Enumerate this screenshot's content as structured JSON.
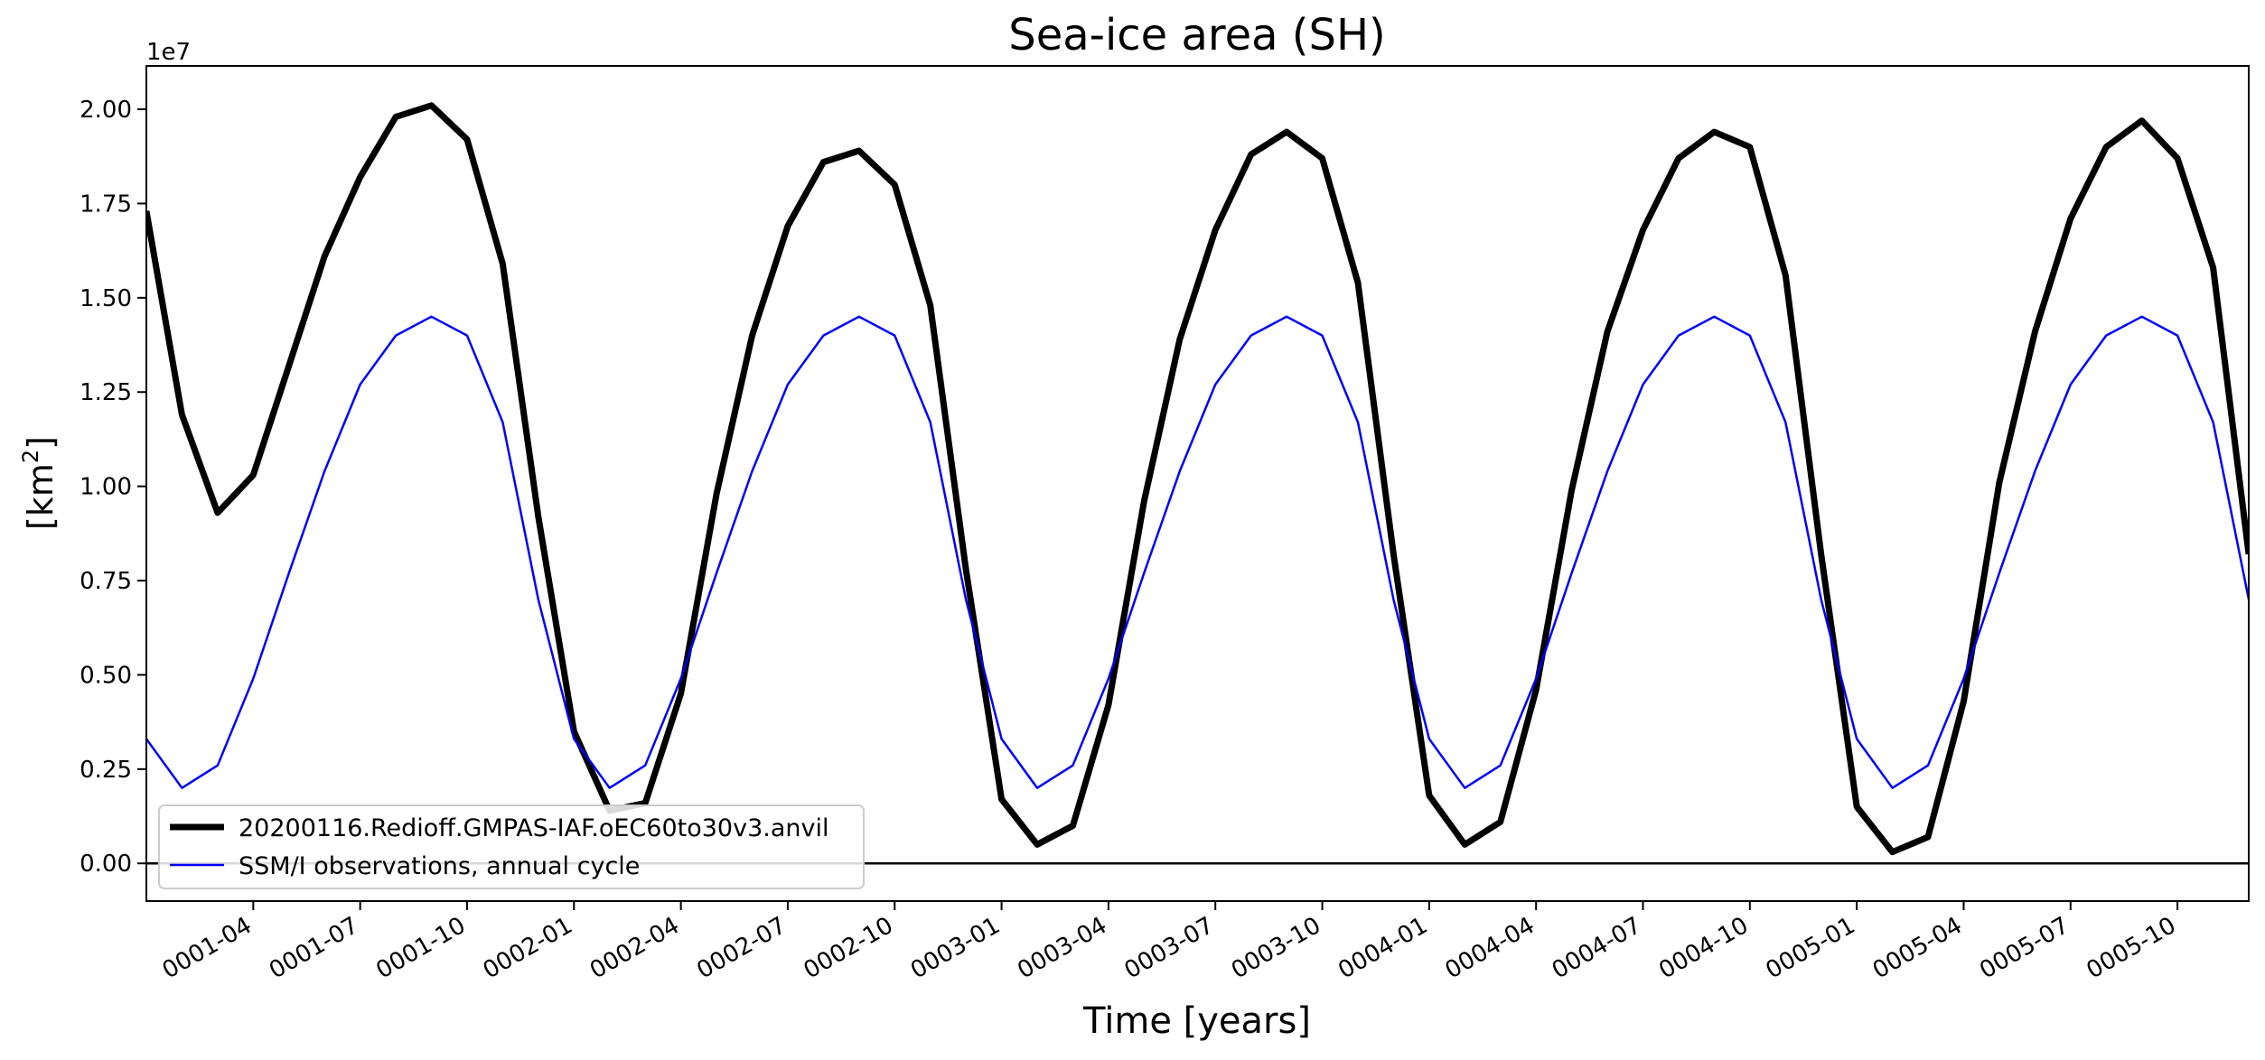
{
  "chart_data": {
    "type": "line",
    "title": "Sea-ice area (SH)",
    "xlabel": "Time [years]",
    "ylabel_base": "[km",
    "ylabel_sup": "2",
    "ylabel_close": "]",
    "y_offset_label": "1e7",
    "y_scale": 10000000,
    "x_unit": "month",
    "x_start": "0001-01",
    "xlim": [
      0,
      59
    ],
    "ylim": [
      -0.1,
      2.115
    ],
    "x_ticks": [
      {
        "label": "0001-04",
        "x": 3
      },
      {
        "label": "0001-07",
        "x": 6
      },
      {
        "label": "0001-10",
        "x": 9
      },
      {
        "label": "0002-01",
        "x": 12
      },
      {
        "label": "0002-04",
        "x": 15
      },
      {
        "label": "0002-07",
        "x": 18
      },
      {
        "label": "0002-10",
        "x": 21
      },
      {
        "label": "0003-01",
        "x": 24
      },
      {
        "label": "0003-04",
        "x": 27
      },
      {
        "label": "0003-07",
        "x": 30
      },
      {
        "label": "0003-10",
        "x": 33
      },
      {
        "label": "0004-01",
        "x": 36
      },
      {
        "label": "0004-04",
        "x": 39
      },
      {
        "label": "0004-07",
        "x": 42
      },
      {
        "label": "0004-10",
        "x": 45
      },
      {
        "label": "0005-01",
        "x": 48
      },
      {
        "label": "0005-04",
        "x": 51
      },
      {
        "label": "0005-07",
        "x": 54
      },
      {
        "label": "0005-10",
        "x": 57
      }
    ],
    "y_ticks": [
      {
        "label": "0.00",
        "v": 0.0
      },
      {
        "label": "0.25",
        "v": 0.25
      },
      {
        "label": "0.50",
        "v": 0.5
      },
      {
        "label": "0.75",
        "v": 0.75
      },
      {
        "label": "1.00",
        "v": 1.0
      },
      {
        "label": "1.25",
        "v": 1.25
      },
      {
        "label": "1.50",
        "v": 1.5
      },
      {
        "label": "1.75",
        "v": 1.75
      },
      {
        "label": "2.00",
        "v": 2.0
      }
    ],
    "zero_line": 0,
    "legend_position": "lower-left",
    "series": [
      {
        "name": "20200116.Redioff.GMPAS-IAF.oEC60to30v3.anvil",
        "color": "#000000",
        "values": [
          1.73,
          1.19,
          0.93,
          1.03,
          1.32,
          1.61,
          1.82,
          1.98,
          2.01,
          1.92,
          1.59,
          0.92,
          0.35,
          0.14,
          0.16,
          0.45,
          0.98,
          1.4,
          1.69,
          1.86,
          1.89,
          1.8,
          1.48,
          0.78,
          0.17,
          0.05,
          0.1,
          0.42,
          0.96,
          1.39,
          1.68,
          1.88,
          1.94,
          1.87,
          1.54,
          0.82,
          0.18,
          0.05,
          0.11,
          0.46,
          0.99,
          1.41,
          1.68,
          1.87,
          1.94,
          1.9,
          1.56,
          0.82,
          0.15,
          0.03,
          0.07,
          0.43,
          1.01,
          1.41,
          1.71,
          1.9,
          1.97,
          1.87,
          1.58,
          0.82
        ]
      },
      {
        "name": "SSM/I observations, annual cycle",
        "color": "#0000ff",
        "values": [
          0.33,
          0.2,
          0.26,
          0.49,
          0.77,
          1.04,
          1.27,
          1.4,
          1.45,
          1.4,
          1.17,
          0.7,
          0.33,
          0.2,
          0.26,
          0.49,
          0.77,
          1.04,
          1.27,
          1.4,
          1.45,
          1.4,
          1.17,
          0.7,
          0.33,
          0.2,
          0.26,
          0.49,
          0.77,
          1.04,
          1.27,
          1.4,
          1.45,
          1.4,
          1.17,
          0.7,
          0.33,
          0.2,
          0.26,
          0.49,
          0.77,
          1.04,
          1.27,
          1.4,
          1.45,
          1.4,
          1.17,
          0.7,
          0.33,
          0.2,
          0.26,
          0.49,
          0.77,
          1.04,
          1.27,
          1.4,
          1.45,
          1.4,
          1.17,
          0.7
        ]
      }
    ]
  }
}
